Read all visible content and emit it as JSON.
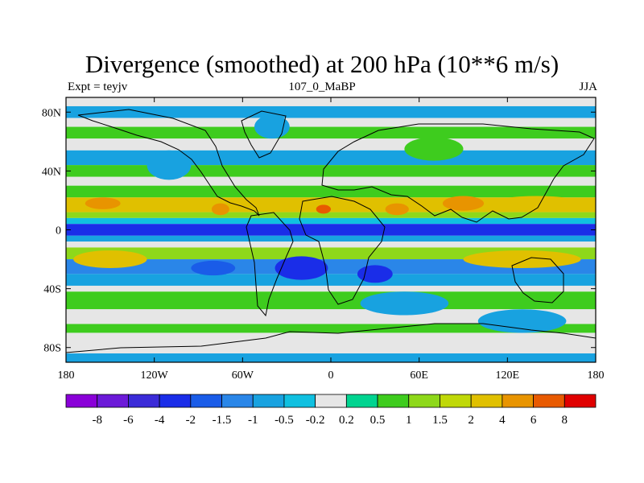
{
  "title": "Divergence (smoothed) at 200 hPa (10**6 m/s)",
  "left_label": "Expt = teyjv",
  "center_label": "107_0_MaBP",
  "right_label": "JJA",
  "chart_data": {
    "type": "heatmap",
    "title": "Divergence (smoothed) at 200 hPa (10**6 m/s)",
    "variable": "Divergence (smoothed)",
    "level": "200 hPa",
    "units": "10**6 m/s",
    "season": "JJA",
    "x_range": [
      -180,
      180
    ],
    "y_range": [
      -90,
      90
    ],
    "x_ticks": [
      {
        "value": -180,
        "label": "180"
      },
      {
        "value": -120,
        "label": "120W"
      },
      {
        "value": -60,
        "label": "60W"
      },
      {
        "value": 0,
        "label": "0"
      },
      {
        "value": 60,
        "label": "60E"
      },
      {
        "value": 120,
        "label": "120E"
      },
      {
        "value": 180,
        "label": "180"
      }
    ],
    "y_ticks": [
      {
        "value": 80,
        "label": "80N"
      },
      {
        "value": 40,
        "label": "40N"
      },
      {
        "value": 0,
        "label": "0"
      },
      {
        "value": -40,
        "label": "40S"
      },
      {
        "value": -80,
        "label": "80S"
      }
    ],
    "levels": [
      "-8",
      "-6",
      "-4",
      "-2",
      "-1.5",
      "-1",
      "-0.5",
      "-0.2",
      "0.2",
      "0.5",
      "1",
      "1.5",
      "2",
      "4",
      "6",
      "8"
    ],
    "colors": [
      "#8a00d8",
      "#6c1ad8",
      "#3b2bd8",
      "#1a2de8",
      "#1a5ce8",
      "#2a86e8",
      "#18a2e0",
      "#10c0e0",
      "#e6e6e6",
      "#00d490",
      "#3ecc1e",
      "#8ed81a",
      "#c0d808",
      "#e0c000",
      "#e89400",
      "#e85a00",
      "#e00000"
    ],
    "bands": [
      {
        "lat_n": 90,
        "lat_s": 84,
        "color_index": 8
      },
      {
        "lat_n": 84,
        "lat_s": 76,
        "color_index": 6
      },
      {
        "lat_n": 76,
        "lat_s": 70,
        "color_index": 8
      },
      {
        "lat_n": 70,
        "lat_s": 62,
        "color_index": 10
      },
      {
        "lat_n": 62,
        "lat_s": 54,
        "color_index": 8
      },
      {
        "lat_n": 54,
        "lat_s": 44,
        "color_index": 6
      },
      {
        "lat_n": 44,
        "lat_s": 36,
        "color_index": 10
      },
      {
        "lat_n": 36,
        "lat_s": 30,
        "color_index": 8
      },
      {
        "lat_n": 30,
        "lat_s": 22,
        "color_index": 10
      },
      {
        "lat_n": 22,
        "lat_s": 12,
        "color_index": 13
      },
      {
        "lat_n": 12,
        "lat_s": 8,
        "color_index": 11
      },
      {
        "lat_n": 8,
        "lat_s": 4,
        "color_index": 7
      },
      {
        "lat_n": 4,
        "lat_s": -4,
        "color_index": 3
      },
      {
        "lat_n": -4,
        "lat_s": -8,
        "color_index": 6
      },
      {
        "lat_n": -8,
        "lat_s": -12,
        "color_index": 8
      },
      {
        "lat_n": -12,
        "lat_s": -20,
        "color_index": 11
      },
      {
        "lat_n": -20,
        "lat_s": -30,
        "color_index": 5
      },
      {
        "lat_n": -30,
        "lat_s": -38,
        "color_index": 6
      },
      {
        "lat_n": -38,
        "lat_s": -42,
        "color_index": 8
      },
      {
        "lat_n": -42,
        "lat_s": -54,
        "color_index": 10
      },
      {
        "lat_n": -54,
        "lat_s": -64,
        "color_index": 8
      },
      {
        "lat_n": -64,
        "lat_s": -70,
        "color_index": 10
      },
      {
        "lat_n": -70,
        "lat_s": -84,
        "color_index": 8
      },
      {
        "lat_n": -84,
        "lat_s": -90,
        "color_index": 6
      }
    ],
    "features": [
      {
        "lon": -155,
        "lat": 18,
        "rlon": 12,
        "rlat": 4,
        "color_index": 14
      },
      {
        "lon": -75,
        "lat": 14,
        "rlon": 6,
        "rlat": 4,
        "color_index": 14
      },
      {
        "lon": -5,
        "lat": 14,
        "rlon": 5,
        "rlat": 3,
        "color_index": 15
      },
      {
        "lon": 45,
        "lat": 14,
        "rlon": 8,
        "rlat": 4,
        "color_index": 14
      },
      {
        "lon": 90,
        "lat": 18,
        "rlon": 14,
        "rlat": 5,
        "color_index": 14
      },
      {
        "lon": 140,
        "lat": 18,
        "rlon": 30,
        "rlat": 5,
        "color_index": 13
      },
      {
        "lon": -150,
        "lat": -20,
        "rlon": 25,
        "rlat": 6,
        "color_index": 13
      },
      {
        "lon": 130,
        "lat": -20,
        "rlon": 40,
        "rlat": 6,
        "color_index": 13
      },
      {
        "lon": -20,
        "lat": -26,
        "rlon": 18,
        "rlat": 8,
        "color_index": 3
      },
      {
        "lon": 30,
        "lat": -30,
        "rlon": 12,
        "rlat": 6,
        "color_index": 3
      },
      {
        "lon": -80,
        "lat": -26,
        "rlon": 15,
        "rlat": 5,
        "color_index": 4
      },
      {
        "lon": 50,
        "lat": -50,
        "rlon": 30,
        "rlat": 8,
        "color_index": 6
      },
      {
        "lon": 130,
        "lat": -62,
        "rlon": 30,
        "rlat": 8,
        "color_index": 6
      },
      {
        "lon": -110,
        "lat": 44,
        "rlon": 15,
        "rlat": 10,
        "color_index": 6
      },
      {
        "lon": 70,
        "lat": 55,
        "rlon": 20,
        "rlat": 8,
        "color_index": 10
      },
      {
        "lon": -40,
        "lat": 70,
        "rlon": 12,
        "rlat": 8,
        "color_index": 6
      }
    ]
  }
}
